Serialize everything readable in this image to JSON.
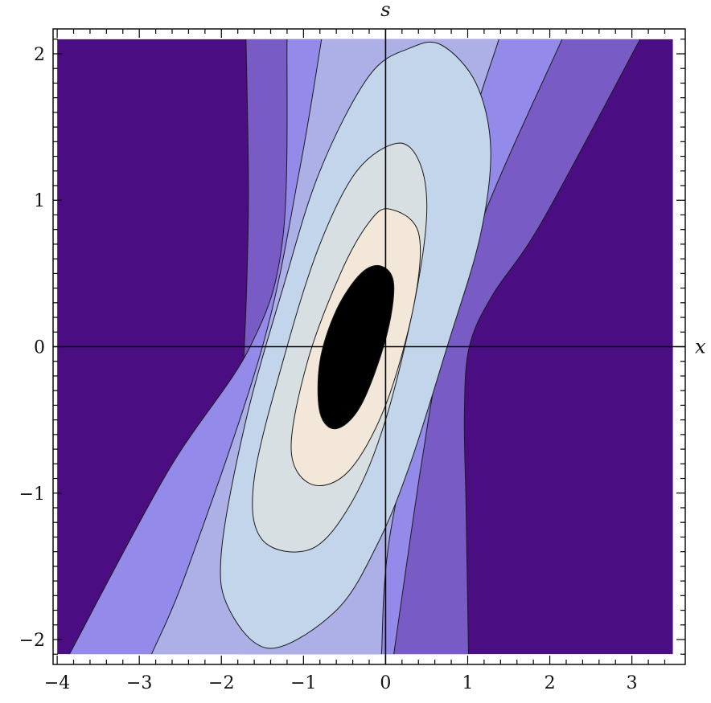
{
  "chart_data": {
    "type": "contour",
    "xlabel": "x",
    "ylabel": "s",
    "xlim": [
      -4,
      3.5
    ],
    "ylim": [
      -2.1,
      2.1
    ],
    "frame_xlim": [
      -4.05,
      3.65
    ],
    "frame_ylim": [
      -2.17,
      2.17
    ],
    "x_ticks": [
      {
        "value": -4,
        "label": "−4"
      },
      {
        "value": -3,
        "label": "−3"
      },
      {
        "value": -2,
        "label": "−2"
      },
      {
        "value": -1,
        "label": "−1"
      },
      {
        "value": 0,
        "label": "0"
      },
      {
        "value": 1,
        "label": "1"
      },
      {
        "value": 2,
        "label": "2"
      },
      {
        "value": 3,
        "label": "3"
      }
    ],
    "y_ticks": [
      {
        "value": -2,
        "label": "−2"
      },
      {
        "value": -1,
        "label": "−1"
      },
      {
        "value": 0,
        "label": "0"
      },
      {
        "value": 1,
        "label": "1"
      },
      {
        "value": 2,
        "label": "2"
      }
    ],
    "level_colors": [
      "#4b0e82",
      "#795bc5",
      "#938aea",
      "#adb0e6",
      "#c2d5ea",
      "#d7dfe3",
      "#f2e7d8"
    ],
    "contours": [
      {
        "level": 1,
        "boundaries": [
          [
            [
              -1.74,
              -2.1
            ],
            [
              -1.74,
              -1.2
            ],
            [
              -1.74,
              -0.6
            ],
            [
              -1.73,
              -0.2
            ],
            [
              -1.72,
              0.0
            ],
            [
              -1.69,
              0.45
            ],
            [
              -1.67,
              1.1
            ],
            [
              -1.7,
              2.1
            ]
          ],
          [
            [
              3.1,
              2.1
            ],
            [
              1.9,
              0.85
            ],
            [
              1.3,
              0.35
            ],
            [
              1.02,
              0.0
            ],
            [
              0.96,
              -0.45
            ],
            [
              0.98,
              -1.1
            ],
            [
              1.01,
              -2.1
            ]
          ]
        ]
      },
      {
        "level": 2,
        "boundaries": [
          [
            [
              -3.85,
              -2.1
            ],
            [
              -2.65,
              -0.85
            ],
            [
              -1.65,
              0.0
            ],
            [
              -1.25,
              0.75
            ],
            [
              -1.2,
              2.1
            ]
          ],
          [
            [
              2.15,
              2.1
            ],
            [
              1.2,
              0.9
            ],
            [
              0.7,
              0.0
            ],
            [
              0.45,
              -0.75
            ],
            [
              0.1,
              -2.1
            ]
          ]
        ]
      },
      {
        "level": 3,
        "boundaries": [
          [
            [
              -2.85,
              -2.1
            ],
            [
              -2.4,
              -1.5
            ],
            [
              -1.5,
              0.0
            ],
            [
              -1.05,
              1.2
            ],
            [
              -0.78,
              2.1
            ]
          ],
          [
            [
              1.38,
              2.1
            ],
            [
              0.95,
              1.3
            ],
            [
              0.53,
              0.0
            ],
            [
              0.05,
              -1.3
            ],
            [
              -0.05,
              -2.1
            ]
          ]
        ]
      },
      {
        "level": 4,
        "closed": true,
        "points": [
          [
            0.68,
            2.06
          ],
          [
            1.1,
            1.8
          ],
          [
            1.28,
            1.35
          ],
          [
            1.15,
            0.75
          ],
          [
            0.75,
            0.0
          ],
          [
            0.3,
            -0.8
          ],
          [
            -0.1,
            -1.35
          ],
          [
            -0.6,
            -1.8
          ],
          [
            -1.4,
            -2.06
          ],
          [
            -1.9,
            -1.8
          ],
          [
            -2.0,
            -1.4
          ],
          [
            -1.7,
            -0.5
          ],
          [
            -1.25,
            0.4
          ],
          [
            -0.8,
            1.2
          ],
          [
            -0.2,
            1.85
          ],
          [
            0.3,
            2.04
          ]
        ]
      },
      {
        "level": 5,
        "closed": true,
        "points": [
          [
            0.15,
            1.39
          ],
          [
            0.42,
            1.25
          ],
          [
            0.5,
            0.9
          ],
          [
            0.35,
            0.3
          ],
          [
            0.0,
            -0.5
          ],
          [
            -0.4,
            -1.05
          ],
          [
            -0.9,
            -1.38
          ],
          [
            -1.5,
            -1.32
          ],
          [
            -1.6,
            -0.9
          ],
          [
            -1.2,
            0.0
          ],
          [
            -0.8,
            0.7
          ],
          [
            -0.35,
            1.2
          ]
        ]
      },
      {
        "level": 6,
        "closed": true,
        "points": [
          [
            0.05,
            0.94
          ],
          [
            0.4,
            0.78
          ],
          [
            0.35,
            0.3
          ],
          [
            0.0,
            -0.4
          ],
          [
            -0.45,
            -0.85
          ],
          [
            -0.9,
            -0.94
          ],
          [
            -1.15,
            -0.7
          ],
          [
            -0.95,
            -0.1
          ],
          [
            -0.55,
            0.5
          ],
          [
            -0.2,
            0.85
          ]
        ]
      },
      {
        "level": 7,
        "closed": true,
        "points": [
          [
            -0.05,
            0.55
          ],
          [
            0.1,
            0.42
          ],
          [
            0.0,
            0.05
          ],
          [
            -0.3,
            -0.4
          ],
          [
            -0.6,
            -0.56
          ],
          [
            -0.8,
            -0.45
          ],
          [
            -0.8,
            -0.1
          ],
          [
            -0.6,
            0.25
          ],
          [
            -0.3,
            0.5
          ]
        ]
      }
    ]
  }
}
